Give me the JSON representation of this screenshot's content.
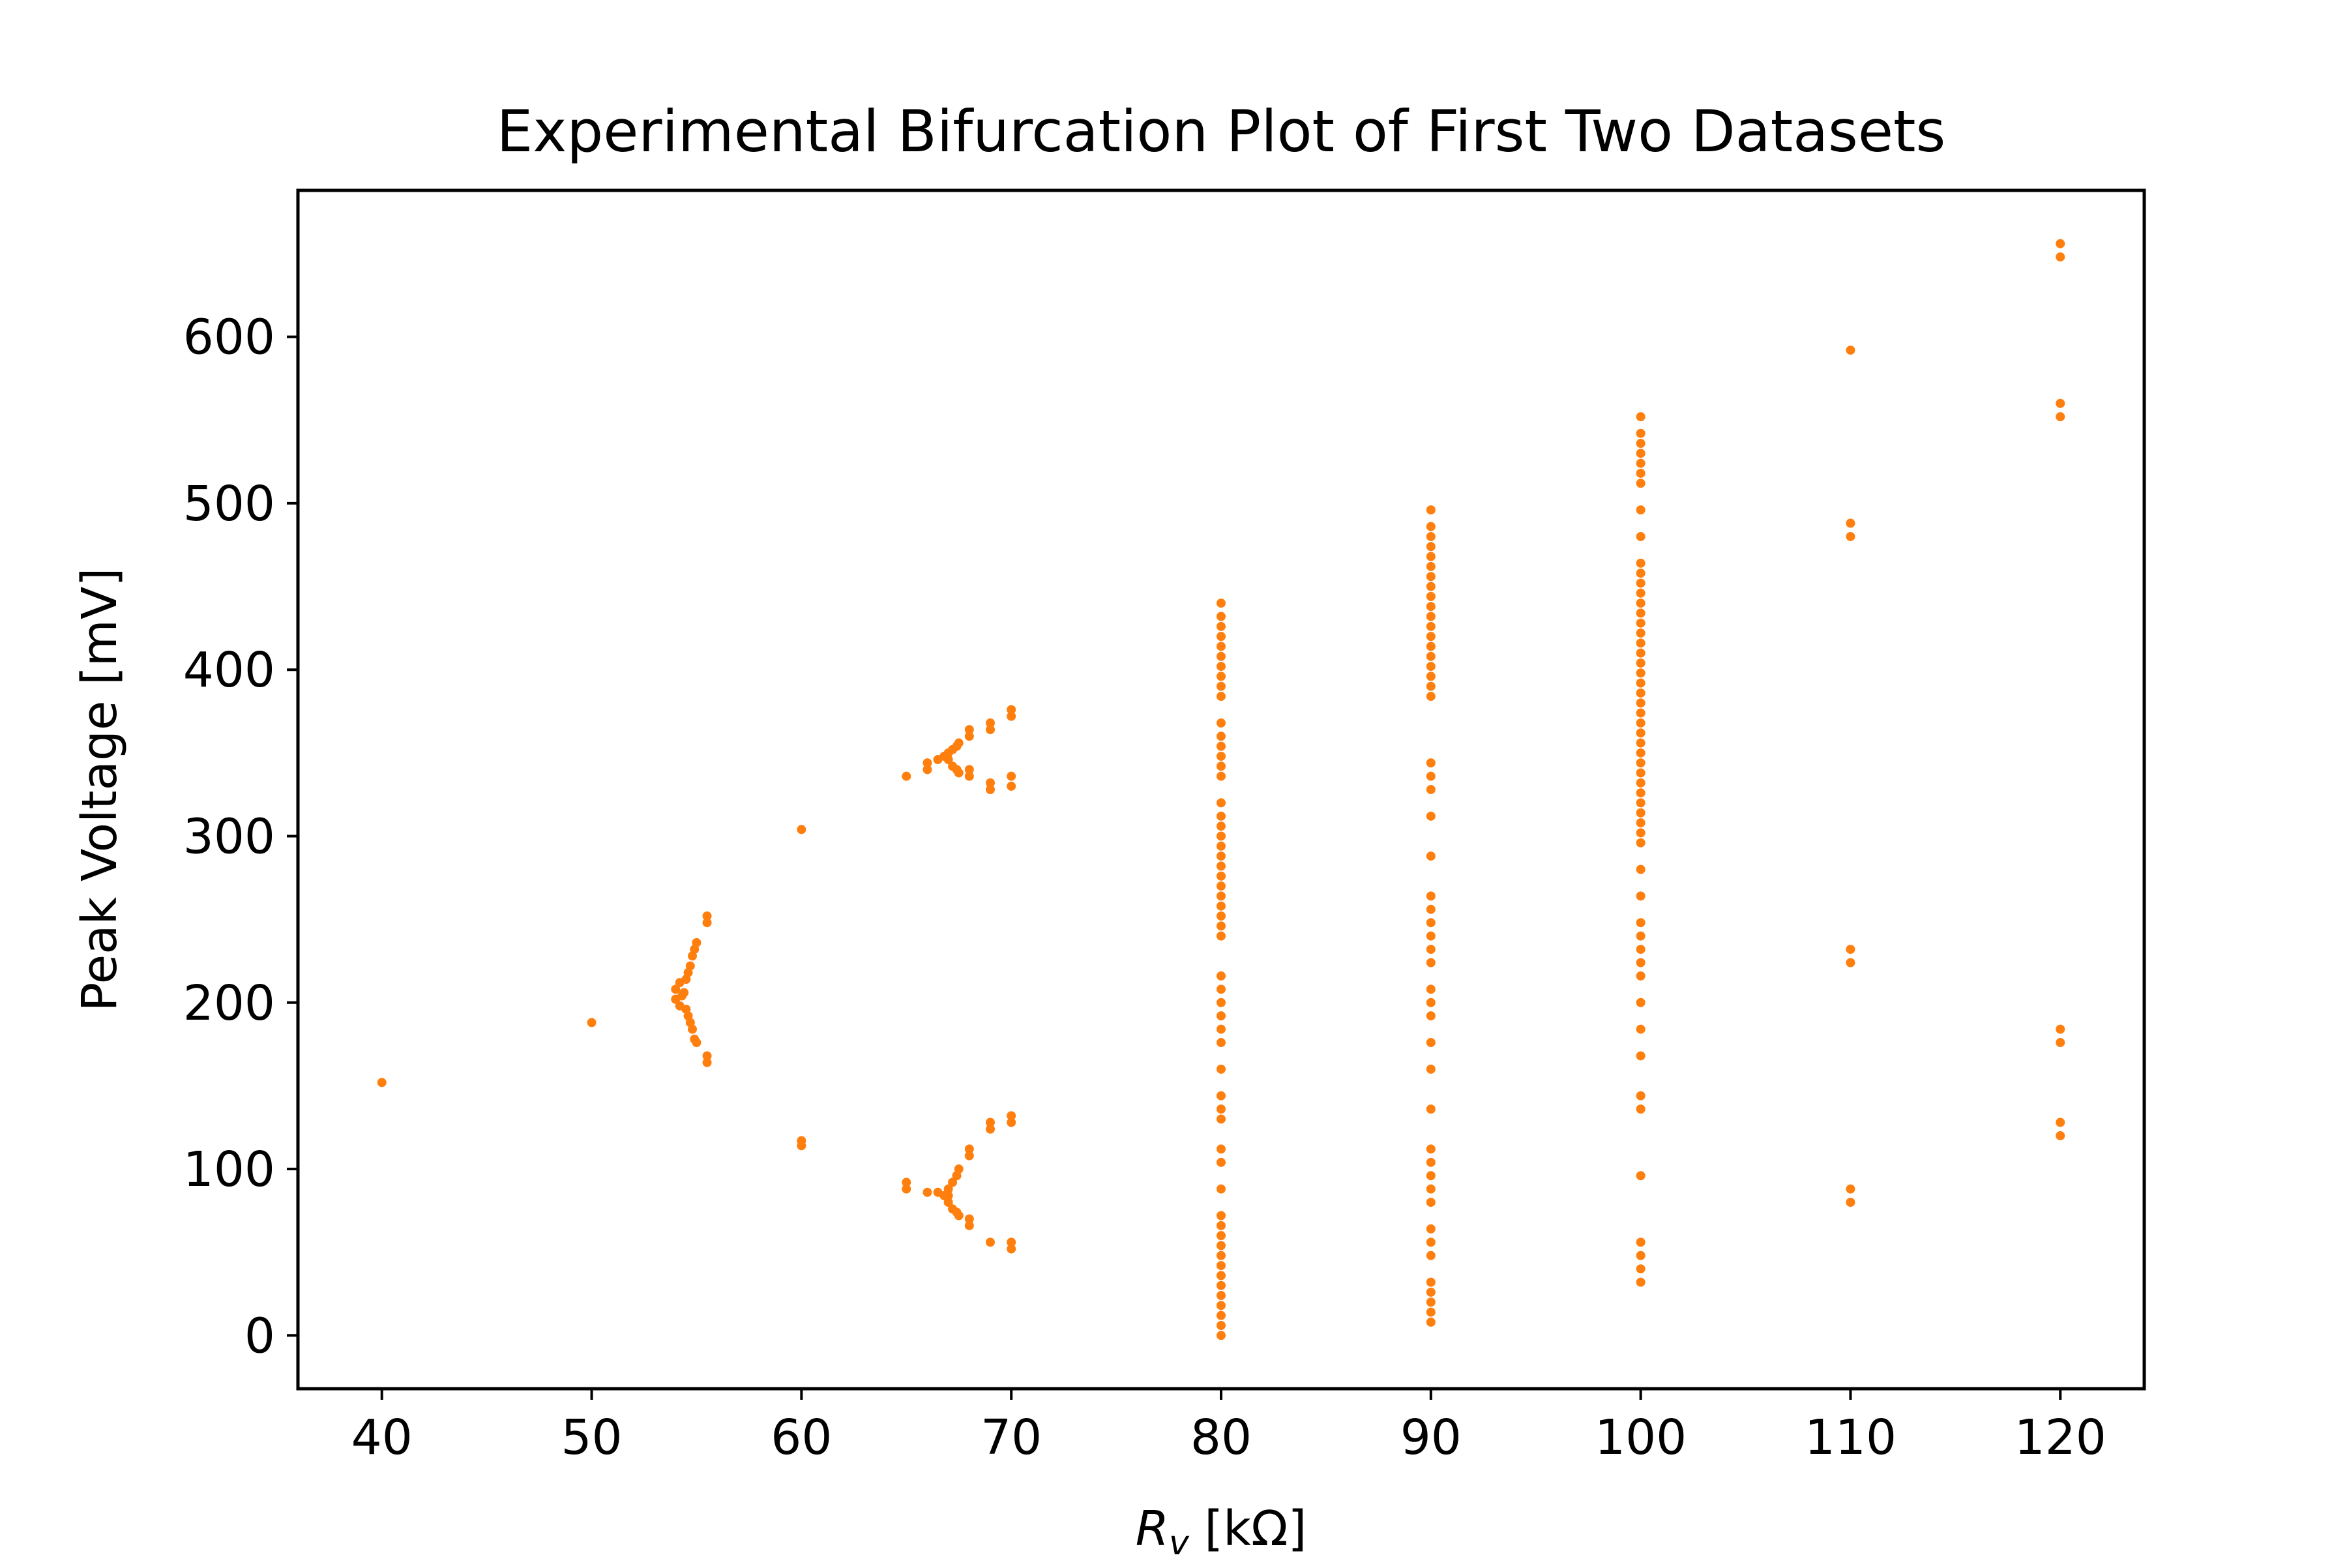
{
  "chart_data": {
    "type": "scatter",
    "title": "Experimental Bifurcation Plot of First Two Datasets",
    "xlabel_main": "R",
    "xlabel_sub": "v",
    "xlabel_unit": " [kΩ]",
    "ylabel": "Peak Voltage [mV]",
    "xlim": [
      36,
      124
    ],
    "ylim": [
      -32,
      688
    ],
    "xticks": [
      40,
      50,
      60,
      70,
      80,
      90,
      100,
      110,
      120
    ],
    "yticks": [
      0,
      100,
      200,
      300,
      400,
      500,
      600
    ],
    "grid": false,
    "marker_color": "#ff7f0e",
    "points": [
      [
        40,
        152
      ],
      [
        50,
        188
      ],
      [
        54,
        202
      ],
      [
        54,
        208
      ],
      [
        54.2,
        198
      ],
      [
        54.2,
        212
      ],
      [
        54.3,
        204
      ],
      [
        54.4,
        206
      ],
      [
        54.5,
        196
      ],
      [
        54.5,
        214
      ],
      [
        54.6,
        192
      ],
      [
        54.6,
        218
      ],
      [
        54.7,
        188
      ],
      [
        54.7,
        222
      ],
      [
        54.8,
        184
      ],
      [
        54.8,
        228
      ],
      [
        54.9,
        178
      ],
      [
        54.9,
        232
      ],
      [
        55,
        176
      ],
      [
        55,
        236
      ],
      [
        55.5,
        164
      ],
      [
        55.5,
        168
      ],
      [
        55.5,
        248
      ],
      [
        55.5,
        252
      ],
      [
        60,
        114
      ],
      [
        60,
        117
      ],
      [
        60,
        304
      ],
      [
        65,
        88
      ],
      [
        65,
        92
      ],
      [
        65,
        336
      ],
      [
        66,
        86
      ],
      [
        66,
        340
      ],
      [
        66,
        344
      ],
      [
        66.5,
        86
      ],
      [
        66.5,
        346
      ],
      [
        66.8,
        84
      ],
      [
        66.8,
        348
      ],
      [
        67,
        80
      ],
      [
        67,
        84
      ],
      [
        67,
        88
      ],
      [
        67,
        346
      ],
      [
        67,
        350
      ],
      [
        67.2,
        76
      ],
      [
        67.2,
        92
      ],
      [
        67.2,
        342
      ],
      [
        67.2,
        352
      ],
      [
        67.4,
        74
      ],
      [
        67.4,
        96
      ],
      [
        67.4,
        340
      ],
      [
        67.4,
        354
      ],
      [
        67.5,
        72
      ],
      [
        67.5,
        100
      ],
      [
        67.5,
        338
      ],
      [
        67.5,
        356
      ],
      [
        68,
        66
      ],
      [
        68,
        70
      ],
      [
        68,
        108
      ],
      [
        68,
        112
      ],
      [
        68,
        336
      ],
      [
        68,
        340
      ],
      [
        68,
        360
      ],
      [
        68,
        364
      ],
      [
        69,
        56
      ],
      [
        69,
        124
      ],
      [
        69,
        128
      ],
      [
        69,
        328
      ],
      [
        69,
        332
      ],
      [
        69,
        364
      ],
      [
        69,
        368
      ],
      [
        70,
        52
      ],
      [
        70,
        56
      ],
      [
        70,
        128
      ],
      [
        70,
        132
      ],
      [
        70,
        330
      ],
      [
        70,
        336
      ],
      [
        70,
        372
      ],
      [
        70,
        376
      ],
      [
        80,
        0
      ],
      [
        80,
        6
      ],
      [
        80,
        12
      ],
      [
        80,
        18
      ],
      [
        80,
        24
      ],
      [
        80,
        30
      ],
      [
        80,
        36
      ],
      [
        80,
        42
      ],
      [
        80,
        48
      ],
      [
        80,
        54
      ],
      [
        80,
        60
      ],
      [
        80,
        66
      ],
      [
        80,
        72
      ],
      [
        80,
        88
      ],
      [
        80,
        104
      ],
      [
        80,
        112
      ],
      [
        80,
        130
      ],
      [
        80,
        136
      ],
      [
        80,
        144
      ],
      [
        80,
        160
      ],
      [
        80,
        176
      ],
      [
        80,
        184
      ],
      [
        80,
        192
      ],
      [
        80,
        200
      ],
      [
        80,
        208
      ],
      [
        80,
        216
      ],
      [
        80,
        240
      ],
      [
        80,
        246
      ],
      [
        80,
        252
      ],
      [
        80,
        258
      ],
      [
        80,
        264
      ],
      [
        80,
        270
      ],
      [
        80,
        276
      ],
      [
        80,
        282
      ],
      [
        80,
        288
      ],
      [
        80,
        294
      ],
      [
        80,
        300
      ],
      [
        80,
        306
      ],
      [
        80,
        312
      ],
      [
        80,
        320
      ],
      [
        80,
        336
      ],
      [
        80,
        342
      ],
      [
        80,
        348
      ],
      [
        80,
        354
      ],
      [
        80,
        360
      ],
      [
        80,
        368
      ],
      [
        80,
        384
      ],
      [
        80,
        390
      ],
      [
        80,
        396
      ],
      [
        80,
        402
      ],
      [
        80,
        408
      ],
      [
        80,
        414
      ],
      [
        80,
        420
      ],
      [
        80,
        426
      ],
      [
        80,
        432
      ],
      [
        80,
        440
      ],
      [
        90,
        8
      ],
      [
        90,
        14
      ],
      [
        90,
        20
      ],
      [
        90,
        26
      ],
      [
        90,
        32
      ],
      [
        90,
        48
      ],
      [
        90,
        56
      ],
      [
        90,
        64
      ],
      [
        90,
        80
      ],
      [
        90,
        88
      ],
      [
        90,
        96
      ],
      [
        90,
        104
      ],
      [
        90,
        112
      ],
      [
        90,
        136
      ],
      [
        90,
        160
      ],
      [
        90,
        176
      ],
      [
        90,
        192
      ],
      [
        90,
        200
      ],
      [
        90,
        208
      ],
      [
        90,
        224
      ],
      [
        90,
        232
      ],
      [
        90,
        240
      ],
      [
        90,
        248
      ],
      [
        90,
        256
      ],
      [
        90,
        264
      ],
      [
        90,
        288
      ],
      [
        90,
        312
      ],
      [
        90,
        328
      ],
      [
        90,
        336
      ],
      [
        90,
        344
      ],
      [
        90,
        384
      ],
      [
        90,
        390
      ],
      [
        90,
        396
      ],
      [
        90,
        402
      ],
      [
        90,
        408
      ],
      [
        90,
        414
      ],
      [
        90,
        420
      ],
      [
        90,
        426
      ],
      [
        90,
        432
      ],
      [
        90,
        438
      ],
      [
        90,
        444
      ],
      [
        90,
        450
      ],
      [
        90,
        456
      ],
      [
        90,
        462
      ],
      [
        90,
        468
      ],
      [
        90,
        474
      ],
      [
        90,
        480
      ],
      [
        90,
        486
      ],
      [
        90,
        496
      ],
      [
        100,
        32
      ],
      [
        100,
        40
      ],
      [
        100,
        48
      ],
      [
        100,
        56
      ],
      [
        100,
        96
      ],
      [
        100,
        136
      ],
      [
        100,
        144
      ],
      [
        100,
        168
      ],
      [
        100,
        184
      ],
      [
        100,
        200
      ],
      [
        100,
        216
      ],
      [
        100,
        224
      ],
      [
        100,
        232
      ],
      [
        100,
        240
      ],
      [
        100,
        248
      ],
      [
        100,
        264
      ],
      [
        100,
        280
      ],
      [
        100,
        296
      ],
      [
        100,
        302
      ],
      [
        100,
        308
      ],
      [
        100,
        314
      ],
      [
        100,
        320
      ],
      [
        100,
        326
      ],
      [
        100,
        332
      ],
      [
        100,
        338
      ],
      [
        100,
        344
      ],
      [
        100,
        350
      ],
      [
        100,
        356
      ],
      [
        100,
        362
      ],
      [
        100,
        368
      ],
      [
        100,
        374
      ],
      [
        100,
        380
      ],
      [
        100,
        386
      ],
      [
        100,
        392
      ],
      [
        100,
        398
      ],
      [
        100,
        404
      ],
      [
        100,
        410
      ],
      [
        100,
        416
      ],
      [
        100,
        422
      ],
      [
        100,
        428
      ],
      [
        100,
        434
      ],
      [
        100,
        440
      ],
      [
        100,
        446
      ],
      [
        100,
        452
      ],
      [
        100,
        458
      ],
      [
        100,
        464
      ],
      [
        100,
        480
      ],
      [
        100,
        496
      ],
      [
        100,
        512
      ],
      [
        100,
        518
      ],
      [
        100,
        524
      ],
      [
        100,
        530
      ],
      [
        100,
        536
      ],
      [
        100,
        542
      ],
      [
        100,
        552
      ],
      [
        110,
        80
      ],
      [
        110,
        88
      ],
      [
        110,
        224
      ],
      [
        110,
        232
      ],
      [
        110,
        480
      ],
      [
        110,
        488
      ],
      [
        110,
        592
      ],
      [
        120,
        120
      ],
      [
        120,
        128
      ],
      [
        120,
        176
      ],
      [
        120,
        184
      ],
      [
        120,
        552
      ],
      [
        120,
        560
      ],
      [
        120,
        648
      ],
      [
        120,
        656
      ]
    ]
  }
}
